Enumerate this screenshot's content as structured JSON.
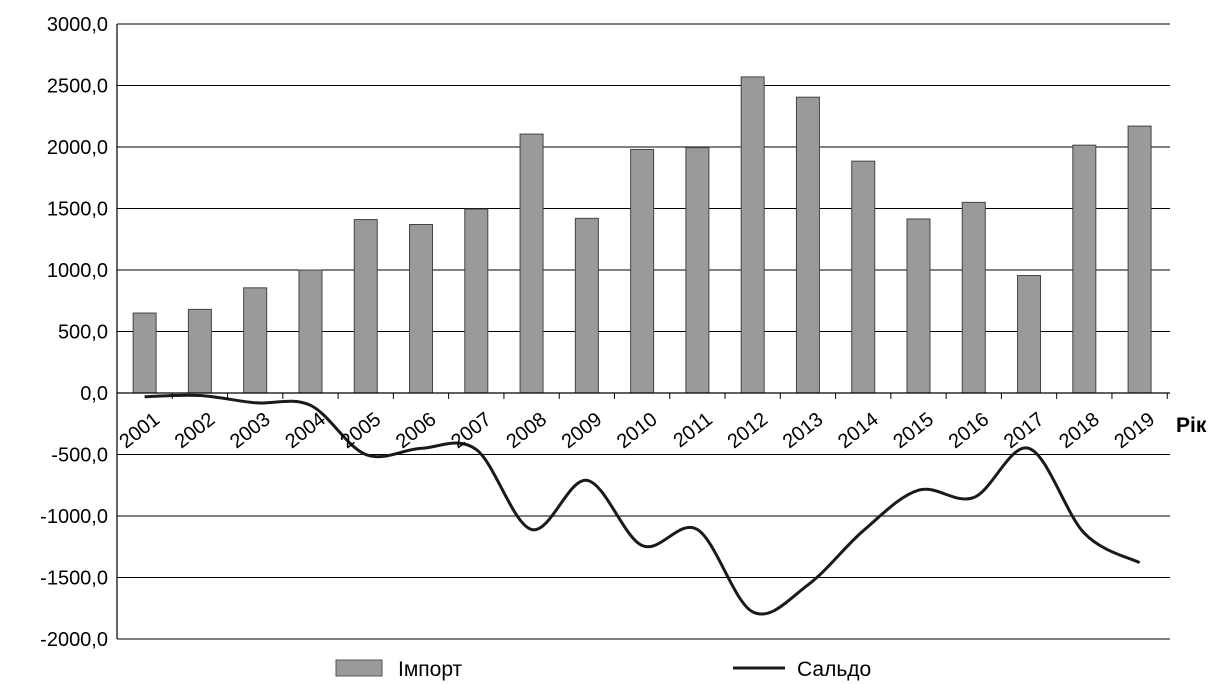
{
  "chart_data": {
    "type": "bar",
    "xlabel": "Рік",
    "categories": [
      "2001",
      "2002",
      "2003",
      "2004",
      "2005",
      "2006",
      "2007",
      "2008",
      "2009",
      "2010",
      "2011",
      "2012",
      "2013",
      "2014",
      "2015",
      "2016",
      "2017",
      "2018",
      "2019"
    ],
    "ylim": [
      -2000,
      3000
    ],
    "yticks": [
      "3000,0",
      "2500,0",
      "2000,0",
      "1500,0",
      "1000,0",
      "500,0",
      "0,0",
      "-500,0",
      "-1000,0",
      "-1500,0",
      "-2000,0"
    ],
    "ytick_values": [
      3000,
      2500,
      2000,
      1500,
      1000,
      500,
      0,
      -500,
      -1000,
      -1500,
      -2000
    ],
    "grid": "horizontal",
    "legend_position": "bottom",
    "series": [
      {
        "name": "Імпорт",
        "type": "bar",
        "color": "#9a9a9a",
        "values": [
          650,
          680,
          855,
          1000,
          1410,
          1370,
          1495,
          2105,
          1420,
          1980,
          1995,
          2570,
          2405,
          1885,
          1415,
          1550,
          955,
          2015,
          2170
        ]
      },
      {
        "name": "Сальдо",
        "type": "line",
        "color": "#1a1a1a",
        "values": [
          -30,
          -20,
          -80,
          -100,
          -500,
          -450,
          -460,
          -1110,
          -710,
          -1240,
          -1110,
          -1780,
          -1560,
          -1120,
          -790,
          -850,
          -450,
          -1140,
          -1380
        ]
      }
    ]
  }
}
